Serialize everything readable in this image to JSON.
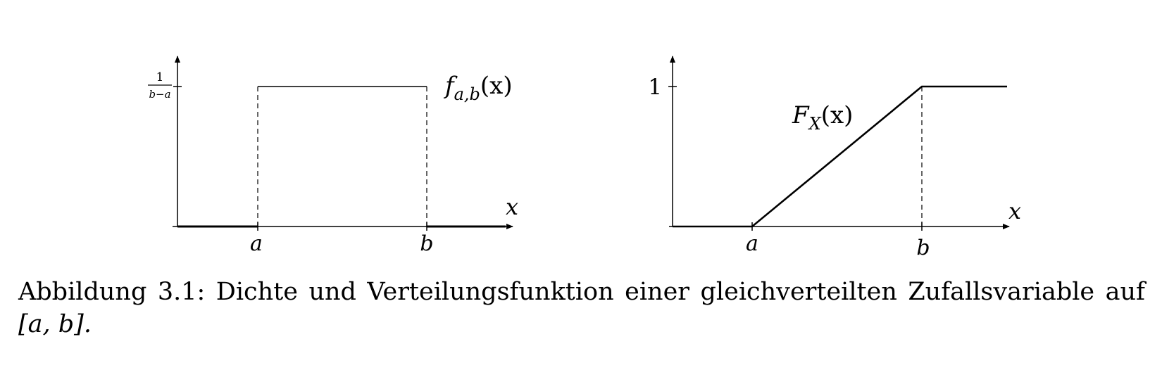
{
  "figure": {
    "left_plot": {
      "y_tick": {
        "numerator": "1",
        "denominator": "b−a"
      },
      "function_label": {
        "base": "f",
        "sub": "a,b",
        "arg": "(x)"
      },
      "x_axis_label": "x",
      "x_ticks": [
        "a",
        "b"
      ]
    },
    "right_plot": {
      "y_tick": "1",
      "function_label": {
        "base": "F",
        "sub": "X",
        "arg": "(x)"
      },
      "x_axis_label": "x",
      "x_ticks": [
        "a",
        "b"
      ]
    }
  },
  "caption": {
    "label": "Abbildung 3.1:",
    "text": "Dichte und Verteilungsfunktion einer gleichverteilten Zufallsvariable auf",
    "interval": "[a, b]."
  }
}
